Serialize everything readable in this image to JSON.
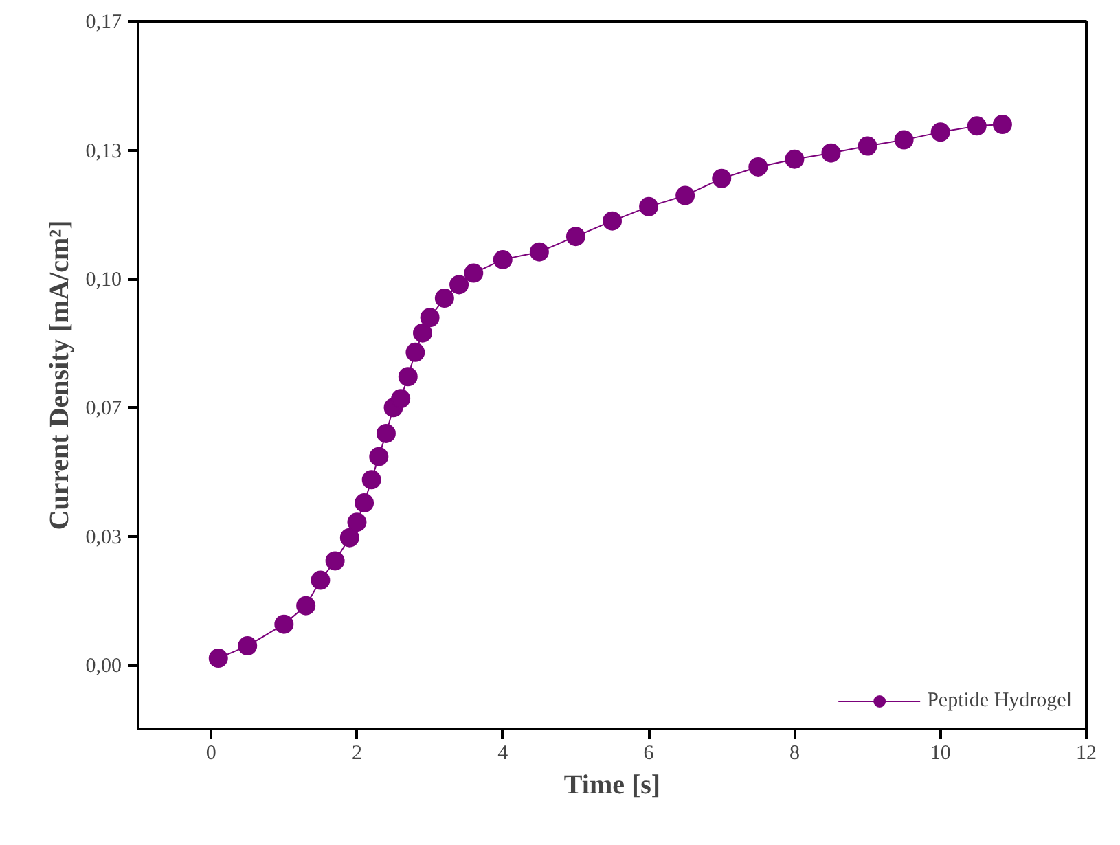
{
  "chart_data": {
    "type": "line",
    "xlabel": "Time [s]",
    "ylabel": "Current Density [mA/cm²]",
    "xlim": [
      -1,
      12
    ],
    "ylim": [
      -0.0165,
      0.1667
    ],
    "xticks": [
      0,
      2,
      4,
      6,
      8,
      10,
      12
    ],
    "yticks": [
      {
        "value": 0,
        "label": "0,00"
      },
      {
        "value": 0.0333,
        "label": "0,03"
      },
      {
        "value": 0.0667,
        "label": "0,07"
      },
      {
        "value": 0.1,
        "label": "0,10"
      },
      {
        "value": 0.1333,
        "label": "0,13"
      },
      {
        "value": 0.1667,
        "label": "0,17"
      }
    ],
    "grid": false,
    "legend": "bottom right",
    "marker": "circle",
    "line_style": "solid",
    "series": [
      {
        "name": "Peptide Hydrogel",
        "color": "#7b017b",
        "x": [
          0.1,
          0.5,
          1.0,
          1.3,
          1.5,
          1.7,
          1.9,
          2.0,
          2.1,
          2.2,
          2.3,
          2.4,
          2.5,
          2.6,
          2.7,
          2.8,
          2.9,
          3.0,
          3.2,
          3.4,
          3.6,
          4.0,
          4.5,
          5.0,
          5.5,
          6.0,
          6.5,
          7.0,
          7.5,
          8.0,
          8.5,
          9.0,
          9.5,
          10.0,
          10.5,
          10.85
        ],
        "values": [
          0.0018,
          0.005,
          0.0106,
          0.0154,
          0.022,
          0.027,
          0.033,
          0.037,
          0.042,
          0.048,
          0.054,
          0.06,
          0.0667,
          0.069,
          0.0747,
          0.081,
          0.086,
          0.09,
          0.095,
          0.0985,
          0.1015,
          0.105,
          0.107,
          0.111,
          0.115,
          0.1187,
          0.1216,
          0.126,
          0.129,
          0.131,
          0.1326,
          0.1344,
          0.136,
          0.138,
          0.1396,
          0.14
        ]
      }
    ]
  }
}
